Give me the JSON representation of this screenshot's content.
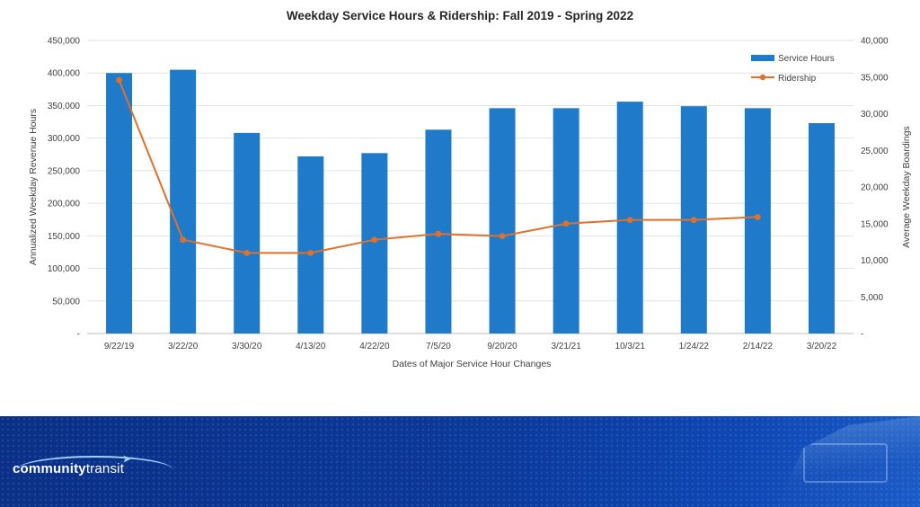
{
  "chart_data": {
    "type": "bar",
    "title": "Weekday Service Hours & Ridership: Fall 2019 - Spring 2022",
    "xlabel": "Dates of Major Service Hour Changes",
    "ylabel": "Annualized Weekday Revenue Hours",
    "y2label": "Average Weekday Boardings",
    "categories": [
      "9/22/19",
      "3/22/20",
      "3/30/20",
      "4/13/20",
      "4/22/20",
      "7/5/20",
      "9/20/20",
      "3/21/21",
      "10/3/21",
      "1/24/22",
      "2/14/22",
      "3/20/22"
    ],
    "ylim": [
      0,
      450000
    ],
    "y2lim": [
      0,
      40000
    ],
    "yticks": [
      "-",
      "50,000",
      "100,000",
      "150,000",
      "200,000",
      "250,000",
      "300,000",
      "350,000",
      "400,000",
      "450,000"
    ],
    "y2ticks": [
      "-",
      "5,000",
      "10,000",
      "15,000",
      "20,000",
      "25,000",
      "30,000",
      "35,000",
      "40,000"
    ],
    "legend_position": "top-right",
    "series": [
      {
        "name": "Service Hours",
        "kind": "bar",
        "axis": "left",
        "color": "#1f7bc9",
        "values": [
          400000,
          405000,
          308000,
          272000,
          277000,
          313000,
          346000,
          346000,
          356000,
          349000,
          346000,
          323000
        ]
      },
      {
        "name": "Ridership",
        "kind": "line",
        "axis": "right",
        "color": "#e0702a",
        "values": [
          34600,
          12800,
          11000,
          11000,
          12800,
          13600,
          13300,
          15000,
          15500,
          15500,
          15900,
          null
        ]
      }
    ]
  },
  "footer": {
    "brand_a": "community",
    "brand_b": "transit"
  }
}
